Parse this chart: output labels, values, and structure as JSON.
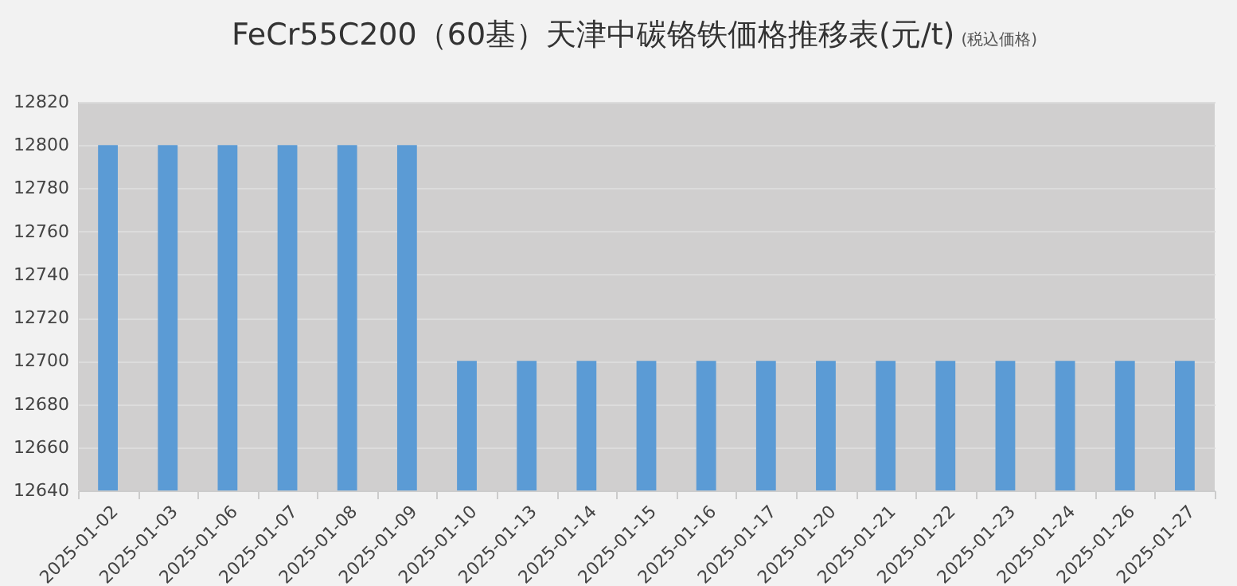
{
  "chart_data": {
    "type": "bar",
    "title": "FeCr55C200（60基）天津中碳铬铁価格推移表(元/t)",
    "subtitle": "(税込価格)",
    "categories": [
      "2025-01-02",
      "2025-01-03",
      "2025-01-06",
      "2025-01-07",
      "2025-01-08",
      "2025-01-09",
      "2025-01-10",
      "2025-01-13",
      "2025-01-14",
      "2025-01-15",
      "2025-01-16",
      "2025-01-17",
      "2025-01-20",
      "2025-01-21",
      "2025-01-22",
      "2025-01-23",
      "2025-01-24",
      "2025-01-26",
      "2025-01-27"
    ],
    "values": [
      12800,
      12800,
      12800,
      12800,
      12800,
      12800,
      12700,
      12700,
      12700,
      12700,
      12700,
      12700,
      12700,
      12700,
      12700,
      12700,
      12700,
      12700,
      12700
    ],
    "color": "#5b9bd5",
    "ylim": [
      12640,
      12820
    ],
    "yticks": [
      12640,
      12660,
      12680,
      12700,
      12720,
      12740,
      12760,
      12780,
      12800,
      12820
    ],
    "grid": "y"
  }
}
